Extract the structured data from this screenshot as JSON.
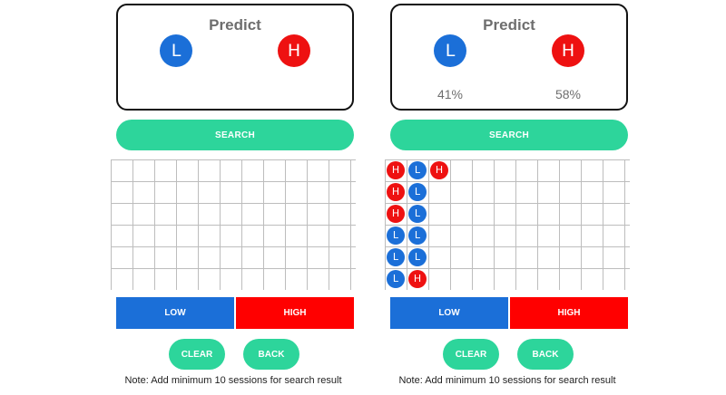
{
  "screens": [
    {
      "predict": {
        "title": "Predict",
        "low_label": "L",
        "high_label": "H",
        "low_pct": "",
        "high_pct": ""
      },
      "search_label": "SEARCH",
      "grid_columns": [],
      "low_label": "LOW",
      "high_label": "HIGH",
      "clear_label": "CLEAR",
      "back_label": "BACK",
      "note": "Note: Add minimum 10 sessions for search result"
    },
    {
      "predict": {
        "title": "Predict",
        "low_label": "L",
        "high_label": "H",
        "low_pct": "41%",
        "high_pct": "58%"
      },
      "search_label": "SEARCH",
      "grid_columns": [
        [
          "H",
          "H",
          "H",
          "L",
          "L",
          "L"
        ],
        [
          "L",
          "L",
          "L",
          "L",
          "L",
          "H"
        ],
        [
          "H"
        ]
      ],
      "low_label": "LOW",
      "high_label": "HIGH",
      "clear_label": "CLEAR",
      "back_label": "BACK",
      "note": "Note: Add minimum 10 sessions for search result"
    }
  ],
  "colors": {
    "low": "#1b6fd8",
    "high": "#ee1111",
    "accent": "#2dd59b"
  }
}
